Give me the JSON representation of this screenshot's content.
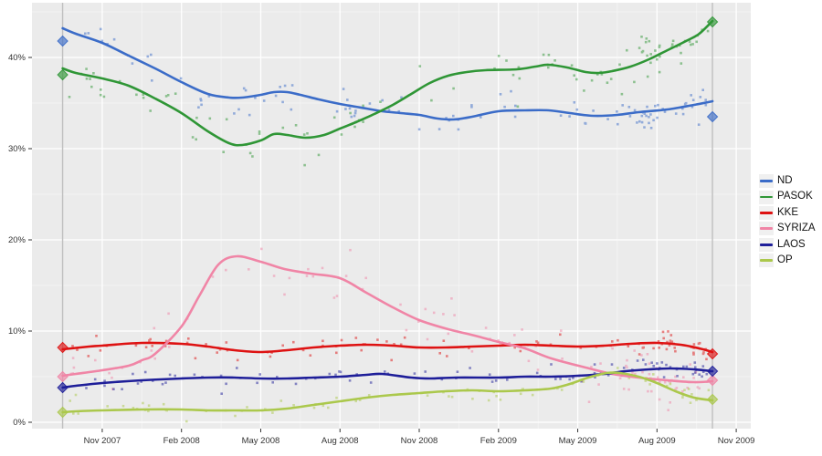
{
  "chart_data": {
    "type": "scatter",
    "subtype": "polls-with-smoothed-trend-lines",
    "title": "",
    "xlabel": "",
    "ylabel": "",
    "panel_bg": "#EBEBEB",
    "grid": {
      "major_color": "#FFFFFF",
      "minor_color": "#FFFFFF",
      "minor_opacity": 0.55
    },
    "axes": {
      "x_unit": "months-since-Sep-2007",
      "xlim": [
        -0.66,
        26.55
      ],
      "ylim": [
        -0.7,
        46.0
      ],
      "x_ticks": [
        {
          "m": 2,
          "label": "Nov 2007"
        },
        {
          "m": 5,
          "label": "Feb 2008"
        },
        {
          "m": 8,
          "label": "May 2008"
        },
        {
          "m": 11,
          "label": "Aug 2008"
        },
        {
          "m": 14,
          "label": "Nov 2008"
        },
        {
          "m": 17,
          "label": "Feb 2009"
        },
        {
          "m": 20,
          "label": "May 2009"
        },
        {
          "m": 23,
          "label": "Aug 2009"
        },
        {
          "m": 26,
          "label": "Nov 2009"
        }
      ],
      "x_minor_ticks": [
        0.5,
        3.5,
        6.5,
        9.5,
        12.5,
        15.5,
        18.5,
        21.5,
        24.5
      ],
      "y_ticks": [
        {
          "v": 0,
          "label": "0%"
        },
        {
          "v": 10,
          "label": "10%"
        },
        {
          "v": 20,
          "label": "20%"
        },
        {
          "v": 30,
          "label": "30%"
        },
        {
          "v": 40,
          "label": "40%"
        }
      ],
      "y_minor_ticks": [
        5,
        15,
        25,
        35,
        45
      ]
    },
    "election_lines": {
      "color": "#bfbfbf",
      "months": [
        0.5,
        25.1
      ]
    },
    "elections": [
      {
        "m": 0.5,
        "results": {
          "ND": 41.8,
          "PASOK": 38.1,
          "KKE": 8.2,
          "SYRIZA": 5.0,
          "LAOS": 3.8,
          "OP": 1.1
        }
      },
      {
        "m": 25.1,
        "results": {
          "ND": 33.5,
          "PASOK": 43.9,
          "KKE": 7.5,
          "SYRIZA": 4.6,
          "LAOS": 5.6,
          "OP": 2.5
        }
      }
    ],
    "scatter": {
      "seed": 42,
      "cluster_prob": 0.22,
      "cluster_range": [
        22.3,
        25.0
      ],
      "x_range": [
        0.7,
        24.9
      ],
      "point_size": 2.6,
      "point_opacity": 0.5
    },
    "series": [
      {
        "name": "ND",
        "color": "#3B6CC8",
        "points": 105,
        "sigma": 1.1,
        "trend": [
          [
            0.5,
            43.2
          ],
          [
            1.0,
            42.6
          ],
          [
            2.0,
            41.6
          ],
          [
            3.0,
            40.2
          ],
          [
            4.0,
            38.8
          ],
          [
            5.0,
            37.3
          ],
          [
            6.0,
            36.0
          ],
          [
            6.8,
            35.6
          ],
          [
            7.3,
            35.6
          ],
          [
            8.0,
            35.9
          ],
          [
            8.5,
            36.2
          ],
          [
            9.0,
            36.2
          ],
          [
            9.5,
            35.9
          ],
          [
            10.2,
            35.4
          ],
          [
            11.0,
            34.9
          ],
          [
            12.0,
            34.4
          ],
          [
            12.6,
            34.1
          ],
          [
            13.3,
            33.9
          ],
          [
            14.0,
            33.7
          ],
          [
            14.7,
            33.3
          ],
          [
            15.3,
            33.2
          ],
          [
            16.0,
            33.5
          ],
          [
            17.0,
            34.1
          ],
          [
            18.0,
            34.2
          ],
          [
            18.9,
            34.2
          ],
          [
            19.7,
            33.9
          ],
          [
            20.6,
            33.6
          ],
          [
            21.5,
            33.7
          ],
          [
            22.3,
            34.0
          ],
          [
            23.4,
            34.3
          ],
          [
            24.4,
            34.8
          ],
          [
            25.1,
            35.2
          ]
        ]
      },
      {
        "name": "PASOK",
        "color": "#2F9636",
        "points": 105,
        "sigma": 1.3,
        "trend": [
          [
            0.5,
            38.8
          ],
          [
            1.0,
            38.3
          ],
          [
            2.0,
            37.7
          ],
          [
            3.0,
            36.9
          ],
          [
            4.0,
            35.5
          ],
          [
            5.0,
            33.9
          ],
          [
            6.0,
            31.9
          ],
          [
            6.8,
            30.6
          ],
          [
            7.3,
            30.4
          ],
          [
            8.0,
            30.9
          ],
          [
            8.5,
            31.6
          ],
          [
            9.0,
            31.5
          ],
          [
            9.7,
            31.2
          ],
          [
            10.4,
            31.5
          ],
          [
            11.0,
            32.2
          ],
          [
            11.6,
            32.9
          ],
          [
            12.3,
            33.8
          ],
          [
            13.0,
            34.8
          ],
          [
            13.7,
            36.0
          ],
          [
            14.4,
            37.2
          ],
          [
            15.1,
            38.0
          ],
          [
            15.8,
            38.4
          ],
          [
            16.5,
            38.6
          ],
          [
            17.7,
            38.7
          ],
          [
            18.4,
            39.0
          ],
          [
            18.9,
            39.2
          ],
          [
            19.6,
            38.9
          ],
          [
            20.3,
            38.4
          ],
          [
            20.8,
            38.3
          ],
          [
            21.3,
            38.5
          ],
          [
            22.0,
            39.0
          ],
          [
            22.7,
            39.8
          ],
          [
            23.4,
            40.8
          ],
          [
            24.1,
            41.8
          ],
          [
            24.6,
            42.6
          ],
          [
            25.1,
            44.0
          ]
        ]
      },
      {
        "name": "KKE",
        "color": "#DE1212",
        "points": 100,
        "sigma": 0.55,
        "trend": [
          [
            0.5,
            8.0
          ],
          [
            1.5,
            8.3
          ],
          [
            2.0,
            8.4
          ],
          [
            3.5,
            8.7
          ],
          [
            5.0,
            8.6
          ],
          [
            6.0,
            8.3
          ],
          [
            7.0,
            7.9
          ],
          [
            8.0,
            7.7
          ],
          [
            9.0,
            7.9
          ],
          [
            10.0,
            8.2
          ],
          [
            11.0,
            8.4
          ],
          [
            12.0,
            8.5
          ],
          [
            13.0,
            8.4
          ],
          [
            14.0,
            8.2
          ],
          [
            15.0,
            8.2
          ],
          [
            16.0,
            8.3
          ],
          [
            17.0,
            8.4
          ],
          [
            18.0,
            8.5
          ],
          [
            19.0,
            8.4
          ],
          [
            20.0,
            8.3
          ],
          [
            21.0,
            8.4
          ],
          [
            22.0,
            8.6
          ],
          [
            23.0,
            8.7
          ],
          [
            23.9,
            8.5
          ],
          [
            24.6,
            8.1
          ],
          [
            25.1,
            7.7
          ]
        ]
      },
      {
        "name": "SYRIZA",
        "color": "#F085A6",
        "points": 105,
        "sigma": 1.5,
        "trend": [
          [
            0.5,
            5.1
          ],
          [
            1.0,
            5.3
          ],
          [
            2.0,
            5.7
          ],
          [
            3.0,
            6.2
          ],
          [
            3.5,
            6.8
          ],
          [
            4.0,
            7.5
          ],
          [
            5.0,
            10.5
          ],
          [
            5.7,
            14.0
          ],
          [
            6.4,
            17.3
          ],
          [
            7.1,
            18.2
          ],
          [
            8.0,
            17.6
          ],
          [
            8.9,
            16.8
          ],
          [
            9.9,
            16.3
          ],
          [
            11.0,
            15.8
          ],
          [
            12.0,
            14.2
          ],
          [
            13.0,
            12.6
          ],
          [
            14.0,
            11.2
          ],
          [
            15.1,
            10.2
          ],
          [
            16.1,
            9.5
          ],
          [
            17.0,
            8.8
          ],
          [
            18.0,
            8.1
          ],
          [
            19.0,
            7.0
          ],
          [
            20.3,
            6.0
          ],
          [
            21.3,
            5.3
          ],
          [
            22.3,
            4.9
          ],
          [
            23.4,
            4.6
          ],
          [
            24.4,
            4.4
          ],
          [
            25.1,
            4.5
          ]
        ]
      },
      {
        "name": "LAOS",
        "color": "#1E1E99",
        "points": 95,
        "sigma": 0.6,
        "trend": [
          [
            0.5,
            3.8
          ],
          [
            1.0,
            4.0
          ],
          [
            2.0,
            4.3
          ],
          [
            3.5,
            4.6
          ],
          [
            5.0,
            4.8
          ],
          [
            6.0,
            4.9
          ],
          [
            7.0,
            4.9
          ],
          [
            8.0,
            4.8
          ],
          [
            9.0,
            4.8
          ],
          [
            10.0,
            4.9
          ],
          [
            11.0,
            5.0
          ],
          [
            12.0,
            5.2
          ],
          [
            12.6,
            5.3
          ],
          [
            13.7,
            4.9
          ],
          [
            14.4,
            4.8
          ],
          [
            15.4,
            4.9
          ],
          [
            17.0,
            4.9
          ],
          [
            18.0,
            5.0
          ],
          [
            19.0,
            5.0
          ],
          [
            20.0,
            5.1
          ],
          [
            21.0,
            5.3
          ],
          [
            21.8,
            5.6
          ],
          [
            22.7,
            5.8
          ],
          [
            23.5,
            5.9
          ],
          [
            24.4,
            5.8
          ],
          [
            25.1,
            5.6
          ]
        ]
      },
      {
        "name": "OP",
        "color": "#ABC84C",
        "points": 75,
        "sigma": 0.45,
        "trend": [
          [
            0.5,
            1.1
          ],
          [
            1.0,
            1.2
          ],
          [
            2.0,
            1.3
          ],
          [
            3.5,
            1.4
          ],
          [
            5.0,
            1.4
          ],
          [
            6.0,
            1.3
          ],
          [
            7.0,
            1.3
          ],
          [
            8.0,
            1.3
          ],
          [
            9.0,
            1.5
          ],
          [
            10.0,
            1.9
          ],
          [
            11.0,
            2.3
          ],
          [
            12.0,
            2.7
          ],
          [
            13.0,
            3.0
          ],
          [
            14.0,
            3.2
          ],
          [
            15.0,
            3.4
          ],
          [
            16.0,
            3.5
          ],
          [
            17.0,
            3.4
          ],
          [
            18.0,
            3.5
          ],
          [
            19.0,
            3.7
          ],
          [
            19.7,
            4.2
          ],
          [
            20.4,
            4.9
          ],
          [
            21.1,
            5.4
          ],
          [
            21.6,
            5.4
          ],
          [
            22.3,
            5.0
          ],
          [
            23.0,
            4.3
          ],
          [
            23.7,
            3.4
          ],
          [
            24.4,
            2.7
          ],
          [
            25.1,
            2.4
          ]
        ]
      }
    ],
    "legend_position": "right"
  }
}
